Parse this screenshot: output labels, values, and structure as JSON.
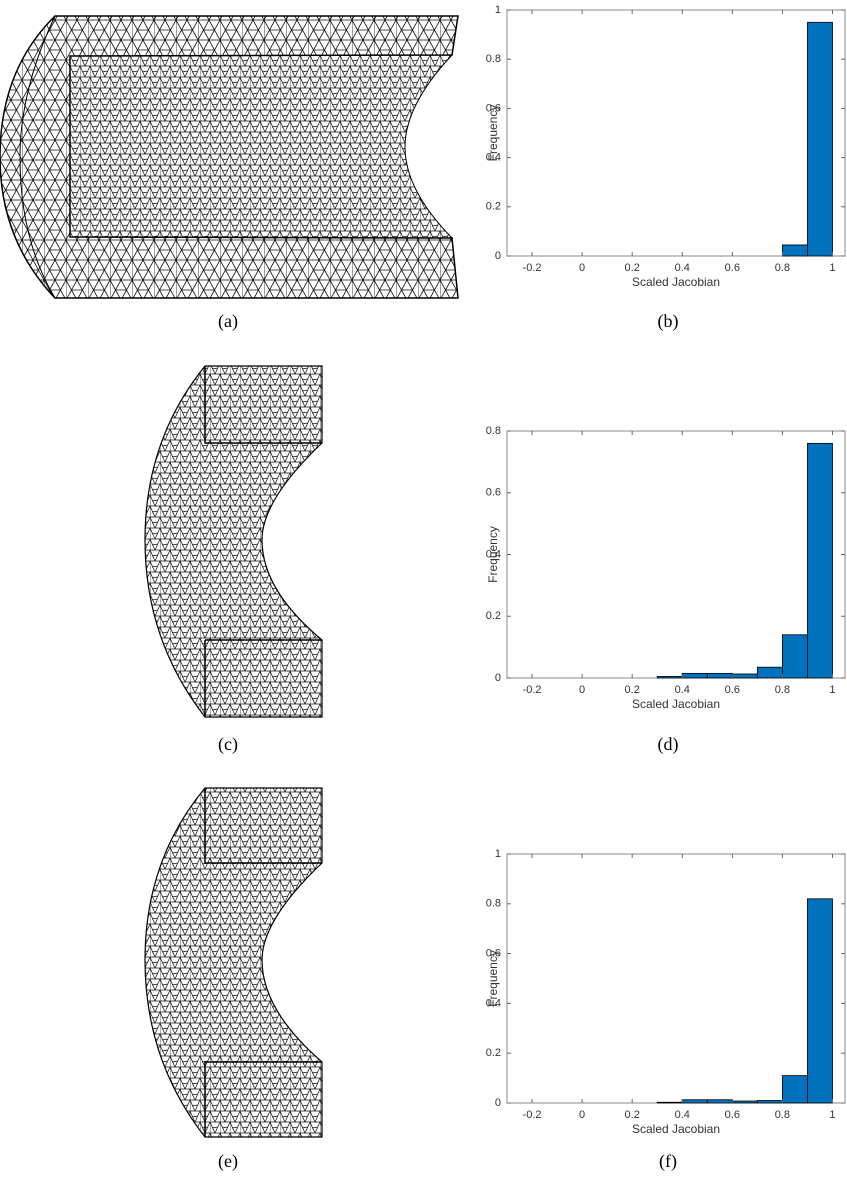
{
  "mesh_panels": [
    {
      "caption": "(a)"
    },
    {
      "caption": "(c)"
    },
    {
      "caption": "(e)"
    }
  ],
  "chart_data": [
    {
      "type": "histogram",
      "caption": "(b)",
      "xlabel": "Scaled Jacobian",
      "ylabel": "Frequency",
      "color": "#0072bd",
      "bins": [
        -0.2,
        -0.1,
        0,
        0.1,
        0.2,
        0.3,
        0.4,
        0.5,
        0.6,
        0.7,
        0.8,
        0.9,
        1
      ],
      "values": [
        0,
        0,
        0,
        0,
        0,
        0,
        0,
        0,
        0,
        0,
        0.045,
        0.95
      ],
      "xlim": [
        -0.3,
        1.05
      ],
      "xticks": [
        -0.2,
        0,
        0.2,
        0.4,
        0.6,
        0.8,
        1
      ],
      "ylim": [
        0,
        1
      ],
      "yticks": [
        0,
        0.2,
        0.4,
        0.6,
        0.8,
        1
      ]
    },
    {
      "type": "histogram",
      "caption": "(d)",
      "xlabel": "Scaled Jacobian",
      "ylabel": "Frequency",
      "color": "#0072bd",
      "bins": [
        -0.2,
        -0.1,
        0,
        0.1,
        0.2,
        0.3,
        0.4,
        0.5,
        0.6,
        0.7,
        0.8,
        0.9,
        1
      ],
      "values": [
        0,
        0,
        0,
        0,
        0,
        0.005,
        0.015,
        0.015,
        0.013,
        0.035,
        0.14,
        0.76
      ],
      "xlim": [
        -0.3,
        1.05
      ],
      "xticks": [
        -0.2,
        0,
        0.2,
        0.4,
        0.6,
        0.8,
        1
      ],
      "ylim": [
        0,
        0.8
      ],
      "yticks": [
        0,
        0.2,
        0.4,
        0.6,
        0.8
      ]
    },
    {
      "type": "histogram",
      "caption": "(f)",
      "xlabel": "Scaled Jacobian",
      "ylabel": "Frequency",
      "color": "#0072bd",
      "bins": [
        -0.2,
        -0.1,
        0,
        0.1,
        0.2,
        0.3,
        0.4,
        0.5,
        0.6,
        0.7,
        0.8,
        0.9,
        1
      ],
      "values": [
        0,
        0,
        0,
        0,
        0,
        0.003,
        0.013,
        0.013,
        0.008,
        0.01,
        0.11,
        0.82
      ],
      "xlim": [
        -0.3,
        1.05
      ],
      "xticks": [
        -0.2,
        0,
        0.2,
        0.4,
        0.6,
        0.8,
        1
      ],
      "ylim": [
        0,
        1
      ],
      "yticks": [
        0,
        0.2,
        0.4,
        0.6,
        0.8,
        1
      ]
    }
  ]
}
